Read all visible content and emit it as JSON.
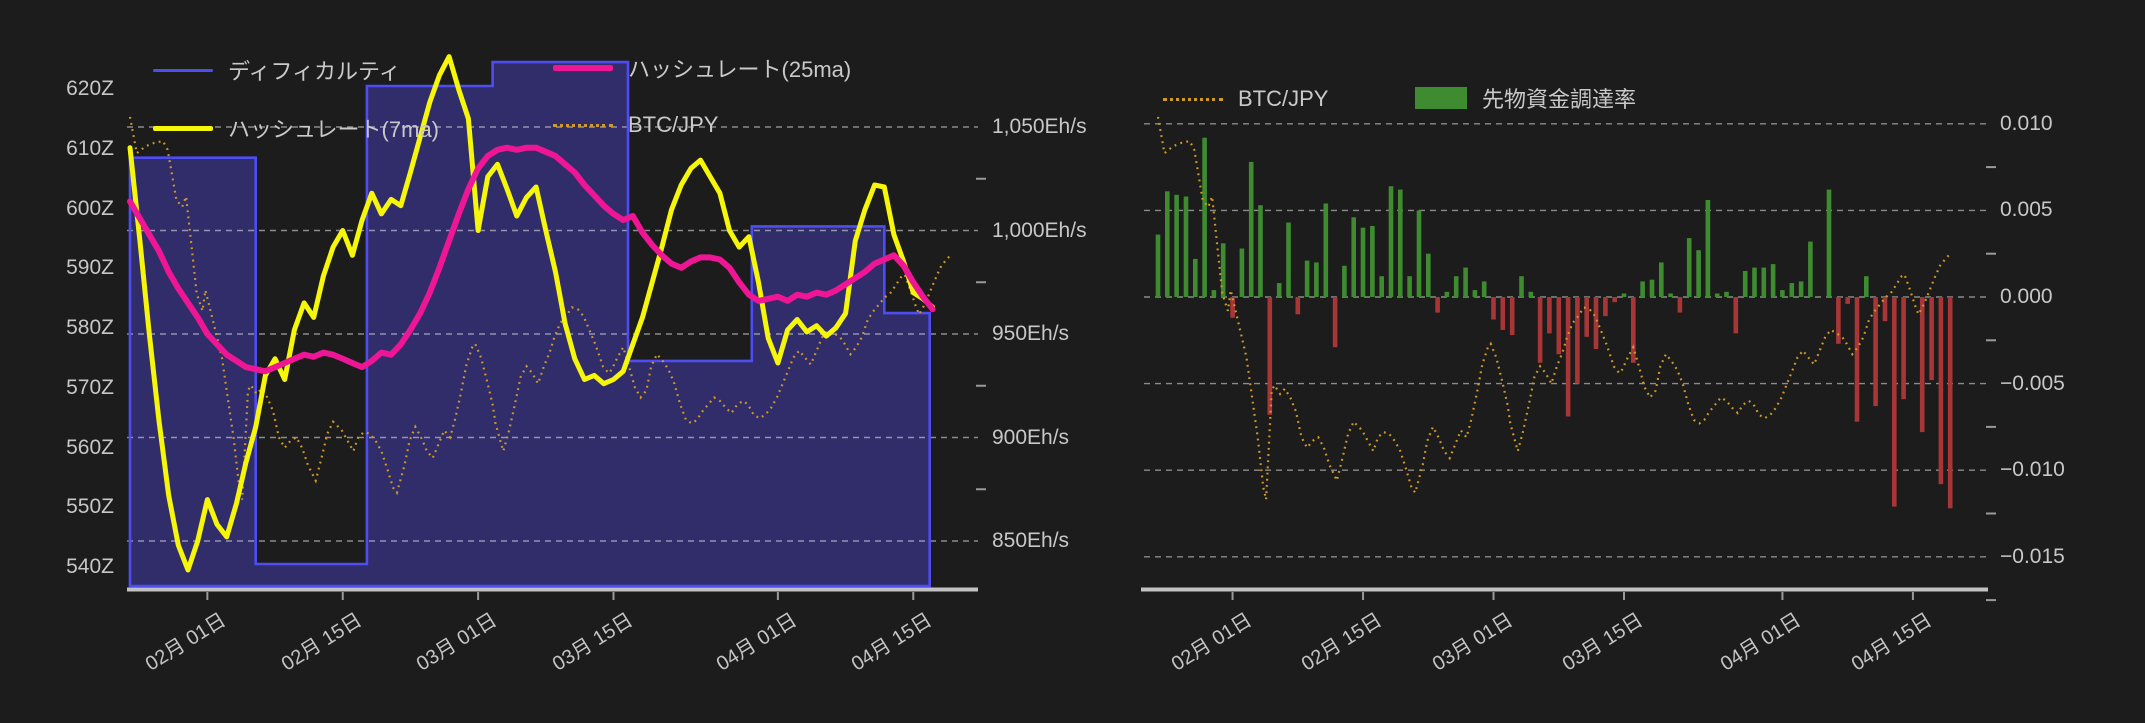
{
  "page": {
    "background_color": "#1c1c1c",
    "axis_text_color": "#c7c7c7",
    "grid_color": "#e8e8e8",
    "axis_line_color": "#c2c2c2"
  },
  "shared": {
    "btc_jpy_points": [
      [
        0,
        0.0104
      ],
      [
        0.7,
        0.0083
      ],
      [
        1.6,
        0.0087
      ],
      [
        2.5,
        0.0089
      ],
      [
        3.4,
        0.009
      ],
      [
        3.9,
        0.0085
      ],
      [
        4.8,
        0.0056
      ],
      [
        5.4,
        0.0052
      ],
      [
        5.8,
        0.0058
      ],
      [
        6.9,
        0.0002
      ],
      [
        7.5,
        -0.0008
      ],
      [
        7.8,
        0.0004
      ],
      [
        8.9,
        -0.0021
      ],
      [
        9.5,
        -0.0035
      ],
      [
        10.1,
        -0.0058
      ],
      [
        10.7,
        -0.0081
      ],
      [
        11.3,
        -0.011
      ],
      [
        11.6,
        -0.0117
      ],
      [
        12.2,
        -0.0054
      ],
      [
        12.5,
        -0.0051
      ],
      [
        13.1,
        -0.0056
      ],
      [
        13.6,
        -0.0053
      ],
      [
        14.2,
        -0.0058
      ],
      [
        14.8,
        -0.0066
      ],
      [
        15.4,
        -0.0081
      ],
      [
        16,
        -0.0087
      ],
      [
        16.6,
        -0.0083
      ],
      [
        17.2,
        -0.0081
      ],
      [
        17.8,
        -0.0087
      ],
      [
        18.4,
        -0.0097
      ],
      [
        19.2,
        -0.0106
      ],
      [
        19.8,
        -0.0093
      ],
      [
        20.4,
        -0.0079
      ],
      [
        21,
        -0.0072
      ],
      [
        21.9,
        -0.0077
      ],
      [
        22.5,
        -0.0083
      ],
      [
        23.1,
        -0.0089
      ],
      [
        23.6,
        -0.0081
      ],
      [
        24.2,
        -0.0078
      ],
      [
        24.8,
        -0.0079
      ],
      [
        25.4,
        -0.0083
      ],
      [
        26,
        -0.0089
      ],
      [
        26.6,
        -0.0099
      ],
      [
        27.2,
        -0.011
      ],
      [
        27.6,
        -0.0113
      ],
      [
        28.4,
        -0.0097
      ],
      [
        28.9,
        -0.0083
      ],
      [
        29.5,
        -0.0075
      ],
      [
        30.1,
        -0.0081
      ],
      [
        30.7,
        -0.0089
      ],
      [
        31.3,
        -0.0093
      ],
      [
        31.9,
        -0.0085
      ],
      [
        32.5,
        -0.0077
      ],
      [
        33.1,
        -0.0081
      ],
      [
        33.6,
        -0.0071
      ],
      [
        34.2,
        -0.0056
      ],
      [
        34.8,
        -0.0039
      ],
      [
        35.4,
        -0.0029
      ],
      [
        35.7,
        -0.0027
      ],
      [
        36.3,
        -0.0035
      ],
      [
        36.9,
        -0.0048
      ],
      [
        37.5,
        -0.0062
      ],
      [
        37.8,
        -0.0073
      ],
      [
        38.4,
        -0.0085
      ],
      [
        38.6,
        -0.0089
      ],
      [
        39.2,
        -0.0077
      ],
      [
        39.8,
        -0.0062
      ],
      [
        40.4,
        -0.0046
      ],
      [
        41,
        -0.004
      ],
      [
        41.6,
        -0.0044
      ],
      [
        42.2,
        -0.005
      ],
      [
        42.8,
        -0.004
      ],
      [
        43.4,
        -0.0032
      ],
      [
        43.9,
        -0.0023
      ],
      [
        44.5,
        -0.0015
      ],
      [
        45.1,
        -0.0011
      ],
      [
        45.7,
        -0.0006
      ],
      [
        46.3,
        -0.0007
      ],
      [
        46.9,
        -0.0011
      ],
      [
        47.5,
        -0.0019
      ],
      [
        48.1,
        -0.0027
      ],
      [
        48.6,
        -0.0035
      ],
      [
        48.9,
        -0.004
      ],
      [
        49.5,
        -0.0044
      ],
      [
        49.8,
        -0.0042
      ],
      [
        50.4,
        -0.0035
      ],
      [
        51,
        -0.0029
      ],
      [
        51.6,
        -0.004
      ],
      [
        52.2,
        -0.0052
      ],
      [
        52.8,
        -0.0058
      ],
      [
        53.4,
        -0.0054
      ],
      [
        53.9,
        -0.004
      ],
      [
        54.5,
        -0.0033
      ],
      [
        55.1,
        -0.0037
      ],
      [
        55.7,
        -0.0042
      ],
      [
        56.3,
        -0.005
      ],
      [
        56.9,
        -0.0062
      ],
      [
        57.5,
        -0.0071
      ],
      [
        58.1,
        -0.0073
      ],
      [
        58.6,
        -0.0071
      ],
      [
        59.2,
        -0.0066
      ],
      [
        59.8,
        -0.0062
      ],
      [
        60.4,
        -0.0058
      ],
      [
        61,
        -0.006
      ],
      [
        61.6,
        -0.0064
      ],
      [
        62.2,
        -0.0067
      ],
      [
        62.8,
        -0.0062
      ],
      [
        63.4,
        -0.006
      ],
      [
        63.9,
        -0.0062
      ],
      [
        64.5,
        -0.0068
      ],
      [
        65.1,
        -0.007
      ],
      [
        65.7,
        -0.0068
      ],
      [
        66.3,
        -0.0064
      ],
      [
        66.9,
        -0.0058
      ],
      [
        67.5,
        -0.005
      ],
      [
        68.1,
        -0.0042
      ],
      [
        68.6,
        -0.0035
      ],
      [
        69.2,
        -0.0031
      ],
      [
        69.8,
        -0.0035
      ],
      [
        70.4,
        -0.0039
      ],
      [
        71,
        -0.0031
      ],
      [
        71.6,
        -0.0023
      ],
      [
        72.2,
        -0.0019
      ],
      [
        72.8,
        -0.0021
      ],
      [
        73.4,
        -0.0023
      ],
      [
        73.9,
        -0.0027
      ],
      [
        74.5,
        -0.0033
      ],
      [
        75.1,
        -0.0029
      ],
      [
        75.7,
        -0.0023
      ],
      [
        76.3,
        -0.0013
      ],
      [
        76.9,
        -0.0008
      ],
      [
        77.5,
        -0.0004
      ],
      [
        78.1,
        0
      ],
      [
        78.6,
        0.0002
      ],
      [
        79.2,
        0.0007
      ],
      [
        79.8,
        0.0012
      ],
      [
        80.1,
        0.0013
      ],
      [
        80.7,
        0.0004
      ],
      [
        81.3,
        -0.0006
      ],
      [
        81.6,
        -0.001
      ],
      [
        82.2,
        -0.0004
      ],
      [
        82.8,
        0.0004
      ],
      [
        83.4,
        0.0012
      ],
      [
        83.9,
        0.0018
      ],
      [
        84.5,
        0.0022
      ],
      [
        85,
        0.0025
      ]
    ]
  },
  "chart_data": [
    {
      "id": "difficulty-hashrate",
      "type": "line",
      "x_axis": {
        "tick_labels": [
          "02月 01日",
          "02月 15日",
          "03月 01日",
          "03月 15日",
          "04月 01日",
          "04月 15日"
        ],
        "tick_days": [
          8,
          22,
          36,
          50,
          67,
          81
        ],
        "total_days": 86
      },
      "y_axis_left": {
        "tick_labels": [
          "620Z",
          "610Z",
          "600Z",
          "590Z",
          "580Z",
          "570Z",
          "560Z",
          "550Z",
          "540Z"
        ],
        "tick_values": [
          620,
          610,
          600,
          590,
          580,
          570,
          560,
          550,
          540
        ],
        "range": [
          540,
          620
        ]
      },
      "y_axis_right": {
        "tick_labels": [
          "1,050Eh/s",
          "1,000Eh/s",
          "950Eh/s",
          "900Eh/s",
          "850Eh/s"
        ],
        "tick_values": [
          1050,
          1000,
          950,
          900,
          850
        ],
        "minor_tick_values": [
          1025,
          975,
          925,
          875
        ],
        "range": [
          850,
          1050
        ],
        "grid": true
      },
      "series": [
        {
          "name": "ディフィカルティ",
          "type": "step_area",
          "axis": "left_Z",
          "line_color": "#4d4df2",
          "fill_color": "#312d6a",
          "steps": [
            {
              "from_day": 0,
              "to_day": 13,
              "value": 608.5
            },
            {
              "from_day": 13,
              "to_day": 24.5,
              "value": 540.5
            },
            {
              "from_day": 24.5,
              "to_day": 37.5,
              "value": 620.5
            },
            {
              "from_day": 37.5,
              "to_day": 51.5,
              "value": 624.5
            },
            {
              "from_day": 51.5,
              "to_day": 64.3,
              "value": 574.5
            },
            {
              "from_day": 64.3,
              "to_day": 78,
              "value": 597
            },
            {
              "from_day": 78,
              "to_day": 82.7,
              "value": 582.5
            }
          ]
        },
        {
          "name": "ハッシュレート(7ma)",
          "type": "line",
          "axis": "right_Eh",
          "color": "#f6f60b",
          "values": [
            1040,
            996,
            950,
            908,
            872,
            848,
            836,
            850,
            870,
            858,
            852,
            868,
            888,
            905,
            930,
            938,
            928,
            952,
            965,
            958,
            978,
            992,
            1000,
            988,
            1005,
            1018,
            1008,
            1015,
            1012,
            1028,
            1045,
            1062,
            1075,
            1084,
            1068,
            1054,
            1000,
            1026,
            1032,
            1020,
            1007,
            1016,
            1021,
            1000,
            980,
            955,
            938,
            928,
            930,
            926,
            928,
            932,
            945,
            958,
            975,
            992,
            1010,
            1022,
            1030,
            1034,
            1026,
            1018,
            1000,
            992,
            997,
            975,
            948,
            936,
            952,
            957,
            951,
            954,
            949,
            953,
            960,
            995,
            1010,
            1022,
            1021,
            998,
            985,
            970,
            967,
            963
          ]
        },
        {
          "name": "ハッシュレート(25ma)",
          "type": "line",
          "axis": "right_Eh",
          "color": "#ee1695",
          "values": [
            1014,
            1006,
            998,
            990,
            980,
            972,
            965,
            958,
            950,
            945,
            940,
            937,
            934,
            933,
            932,
            934,
            936,
            938,
            940,
            939,
            941,
            940,
            938,
            936,
            934,
            937,
            941,
            940,
            945,
            952,
            960,
            970,
            982,
            995,
            1008,
            1020,
            1030,
            1036,
            1039,
            1040,
            1039,
            1040,
            1040,
            1038,
            1036,
            1032,
            1028,
            1022,
            1017,
            1012,
            1008,
            1005,
            1007,
            999,
            993,
            988,
            984,
            982,
            985,
            987,
            987,
            986,
            982,
            975,
            969,
            966,
            967,
            968,
            966,
            969,
            968,
            970,
            969,
            971,
            974,
            977,
            980,
            984,
            986,
            988,
            983,
            975,
            968,
            962
          ]
        },
        {
          "name": "BTC/JPY",
          "type": "dotted_line",
          "color": "#cf9a28",
          "points_ref": "shared.btc_jpy_points"
        }
      ]
    },
    {
      "id": "btcjpy-funding",
      "type": "bar",
      "x_axis": {
        "tick_labels": [
          "02月 01日",
          "02月 15日",
          "03月 01日",
          "03月 15日",
          "04月 01日",
          "04月 15日"
        ],
        "tick_days": [
          8,
          22,
          36,
          50,
          67,
          81
        ],
        "total_days": 86
      },
      "y_axis_right": {
        "tick_labels": [
          "0.010",
          "0.005",
          "0.000",
          "−0.005",
          "−0.010",
          "−0.015"
        ],
        "tick_values": [
          0.01,
          0.005,
          0,
          -0.005,
          -0.01,
          -0.015
        ],
        "minor_tick_values": [
          0.0075,
          0.0025,
          -0.0025,
          -0.0075,
          -0.0125,
          -0.0175
        ],
        "range": [
          -0.015,
          0.01
        ],
        "grid": true
      },
      "series": [
        {
          "name": "BTC/JPY",
          "type": "dotted_line",
          "color": "#cf9a28",
          "points_ref": "shared.btc_jpy_points"
        },
        {
          "name": "先物資金調達率",
          "type": "bar",
          "color_positive": "#3e8b30",
          "color_negative": "#a93636",
          "values": [
            0.0036,
            0.0061,
            0.0059,
            0.0058,
            0.0022,
            0.0092,
            0.0004,
            0.0031,
            -0.0012,
            0.0028,
            0.0078,
            0.0053,
            -0.0068,
            0.0008,
            0.0043,
            -0.001,
            0.0021,
            0.002,
            0.0054,
            -0.0029,
            0.0018,
            0.0046,
            0.004,
            0.0041,
            0.0012,
            0.0064,
            0.0062,
            0.0012,
            0.005,
            0.0025,
            -0.0009,
            0.0003,
            0.0012,
            0.0017,
            0.0004,
            0.0009,
            -0.0013,
            -0.0019,
            -0.0022,
            0.0012,
            0.0003,
            -0.0038,
            -0.0021,
            -0.0033,
            -0.0069,
            -0.005,
            -0.0023,
            -0.003,
            -0.0011,
            -0.0003,
            0.0002,
            -0.0038,
            0.0009,
            0.001,
            0.002,
            0.0002,
            -0.0009,
            0.0034,
            0.0027,
            0.0056,
            0.0002,
            0.0003,
            -0.0021,
            0.0015,
            0.0017,
            0.0017,
            0.0019,
            0.0004,
            0.0008,
            0.0009,
            0.0032,
            0,
            0.0062,
            -0.0027,
            -0.0004,
            -0.0072,
            0.0012,
            -0.0063,
            -0.0014,
            -0.0121,
            -0.0059,
            0,
            -0.0078,
            -0.0048,
            -0.0108,
            -0.0122
          ]
        }
      ]
    }
  ]
}
